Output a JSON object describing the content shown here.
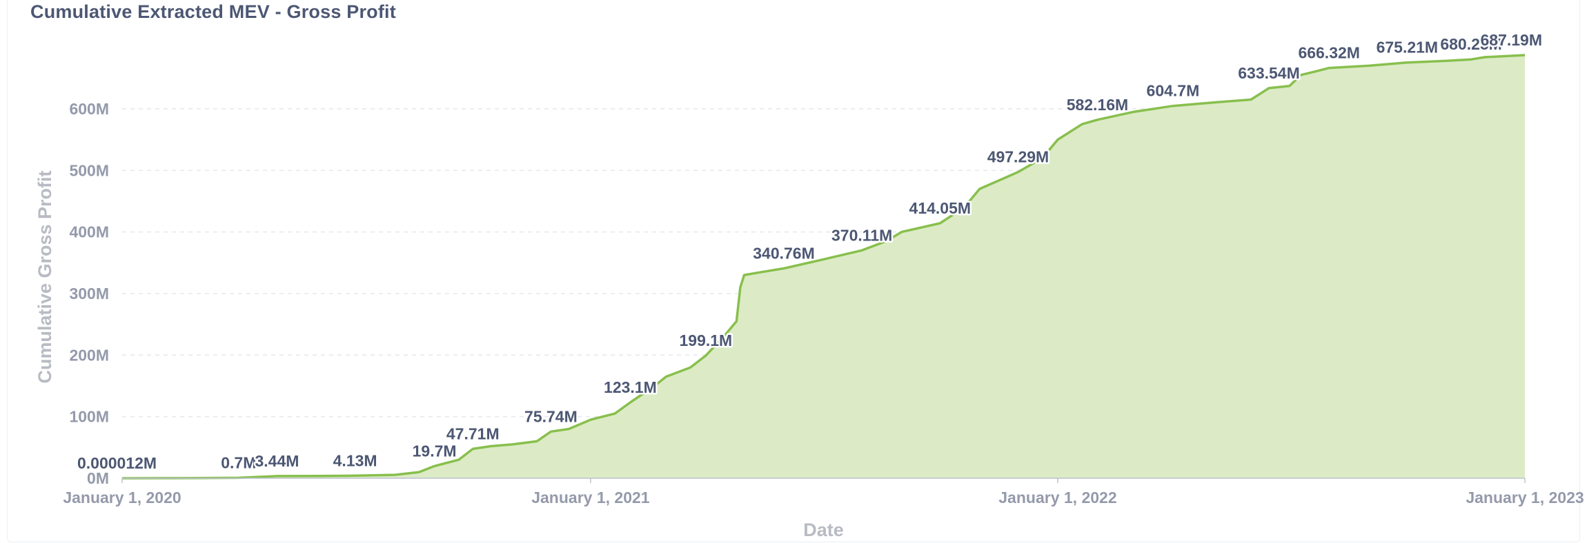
{
  "card": {
    "title": "Cumulative Extracted MEV - Gross Profit"
  },
  "chart_data": {
    "type": "area",
    "title": "Cumulative Extracted MEV - Gross Profit",
    "xlabel": "Date",
    "ylabel": "Cumulative Gross Profit",
    "ylim": [
      0,
      687.19
    ],
    "xlim": [
      "2020-01-01",
      "2023-01-01"
    ],
    "grid": true,
    "colors": {
      "line": "#88bf4d",
      "fill": "#dcebc6",
      "grid": "#e6e8ec",
      "axis": "#bcc2cf"
    },
    "y_ticks": [
      {
        "value": 0,
        "label": "0M"
      },
      {
        "value": 100,
        "label": "100M"
      },
      {
        "value": 200,
        "label": "200M"
      },
      {
        "value": 300,
        "label": "300M"
      },
      {
        "value": 400,
        "label": "400M"
      },
      {
        "value": 500,
        "label": "500M"
      },
      {
        "value": 600,
        "label": "600M"
      }
    ],
    "x_ticks": [
      {
        "date": "2020-01-01",
        "label": "January 1, 2020"
      },
      {
        "date": "2021-01-01",
        "label": "January 1, 2021"
      },
      {
        "date": "2022-01-01",
        "label": "January 1, 2022"
      },
      {
        "date": "2023-01-01",
        "label": "January 1, 2023"
      }
    ],
    "series": [
      {
        "points": [
          [
            "2020-01-01",
            1.2e-05
          ],
          [
            "2020-02-01",
            0.1
          ],
          [
            "2020-03-01",
            0.3
          ],
          [
            "2020-04-01",
            0.7
          ],
          [
            "2020-05-01",
            3.44
          ],
          [
            "2020-06-01",
            3.6
          ],
          [
            "2020-07-01",
            4.13
          ],
          [
            "2020-08-01",
            5.5
          ],
          [
            "2020-08-20",
            10
          ],
          [
            "2020-09-01",
            19.7
          ],
          [
            "2020-09-20",
            30
          ],
          [
            "2020-10-01",
            47.71
          ],
          [
            "2020-10-15",
            52
          ],
          [
            "2020-11-01",
            55
          ],
          [
            "2020-11-20",
            60
          ],
          [
            "2020-12-01",
            75.74
          ],
          [
            "2020-12-15",
            80
          ],
          [
            "2021-01-01",
            95
          ],
          [
            "2021-01-20",
            105
          ],
          [
            "2021-02-01",
            123.1
          ],
          [
            "2021-02-20",
            150
          ],
          [
            "2021-03-01",
            165
          ],
          [
            "2021-03-20",
            180
          ],
          [
            "2021-04-01",
            199.1
          ],
          [
            "2021-04-15",
            230
          ],
          [
            "2021-04-25",
            255
          ],
          [
            "2021-04-28",
            310
          ],
          [
            "2021-05-01",
            330
          ],
          [
            "2021-05-15",
            335
          ],
          [
            "2021-06-01",
            340.76
          ],
          [
            "2021-07-01",
            355
          ],
          [
            "2021-08-01",
            370.11
          ],
          [
            "2021-08-20",
            385
          ],
          [
            "2021-09-01",
            400
          ],
          [
            "2021-10-01",
            414.05
          ],
          [
            "2021-10-20",
            440
          ],
          [
            "2021-11-01",
            470
          ],
          [
            "2021-12-01",
            497.29
          ],
          [
            "2021-12-20",
            520
          ],
          [
            "2022-01-01",
            550
          ],
          [
            "2022-01-20",
            575
          ],
          [
            "2022-02-01",
            582.16
          ],
          [
            "2022-03-01",
            595
          ],
          [
            "2022-04-01",
            604.7
          ],
          [
            "2022-05-01",
            610
          ],
          [
            "2022-06-01",
            615
          ],
          [
            "2022-06-15",
            633.54
          ],
          [
            "2022-07-01",
            637
          ],
          [
            "2022-07-10",
            655
          ],
          [
            "2022-07-20",
            660
          ],
          [
            "2022-08-01",
            666.32
          ],
          [
            "2022-09-01",
            670
          ],
          [
            "2022-10-01",
            675.21
          ],
          [
            "2022-11-01",
            678
          ],
          [
            "2022-11-20",
            680.25
          ],
          [
            "2022-12-01",
            684
          ],
          [
            "2023-01-01",
            687.19
          ]
        ]
      }
    ],
    "data_labels": [
      {
        "date": "2020-01-01",
        "value": 1.2e-05,
        "label": "0.000012M"
      },
      {
        "date": "2020-04-01",
        "value": 0.7,
        "label": "0.7M"
      },
      {
        "date": "2020-05-01",
        "value": 3.44,
        "label": "3.44M"
      },
      {
        "date": "2020-07-01",
        "value": 4.13,
        "label": "4.13M"
      },
      {
        "date": "2020-09-01",
        "value": 19.7,
        "label": "19.7M"
      },
      {
        "date": "2020-10-01",
        "value": 47.71,
        "label": "47.71M"
      },
      {
        "date": "2020-12-01",
        "value": 75.74,
        "label": "75.74M"
      },
      {
        "date": "2021-02-01",
        "value": 123.1,
        "label": "123.1M"
      },
      {
        "date": "2021-04-01",
        "value": 199.1,
        "label": "199.1M"
      },
      {
        "date": "2021-06-01",
        "value": 340.76,
        "label": "340.76M"
      },
      {
        "date": "2021-08-01",
        "value": 370.11,
        "label": "370.11M"
      },
      {
        "date": "2021-10-01",
        "value": 414.05,
        "label": "414.05M"
      },
      {
        "date": "2021-12-01",
        "value": 497.29,
        "label": "497.29M"
      },
      {
        "date": "2022-02-01",
        "value": 582.16,
        "label": "582.16M"
      },
      {
        "date": "2022-04-01",
        "value": 604.7,
        "label": "604.7M"
      },
      {
        "date": "2022-06-15",
        "value": 633.54,
        "label": "633.54M"
      },
      {
        "date": "2022-08-01",
        "value": 666.32,
        "label": "666.32M"
      },
      {
        "date": "2022-10-01",
        "value": 675.21,
        "label": "675.21M"
      },
      {
        "date": "2022-11-20",
        "value": 680.25,
        "label": "680.25M"
      },
      {
        "date": "2023-01-01",
        "value": 687.19,
        "label": "687.19M"
      }
    ]
  }
}
